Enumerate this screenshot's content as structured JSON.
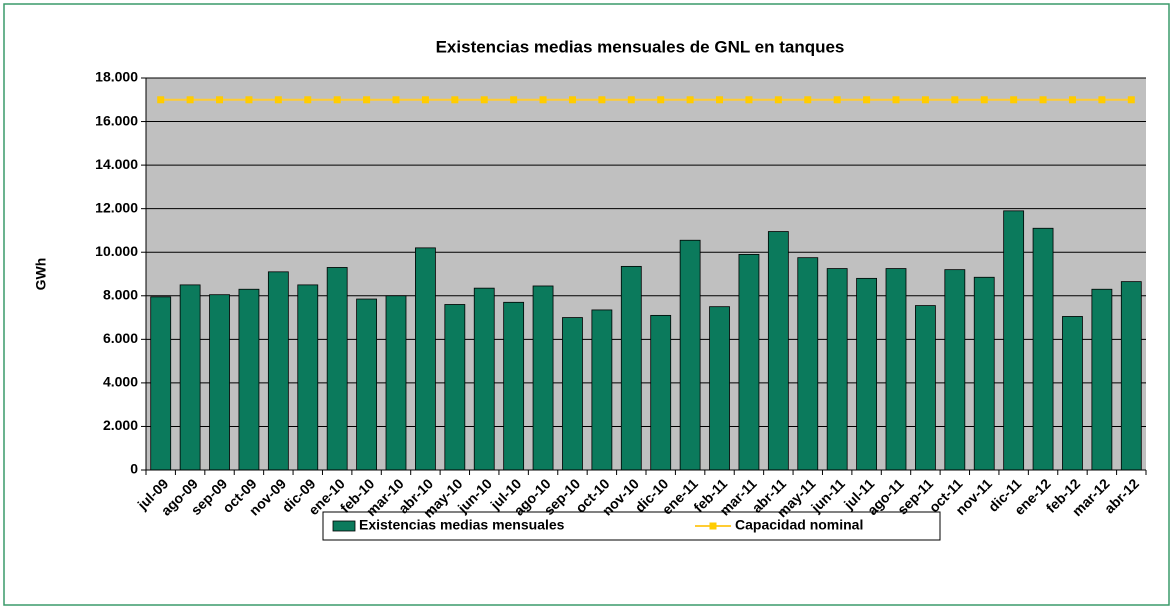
{
  "chart_data": {
    "type": "bar",
    "title": "Existencias medias mensuales de GNL en tanques",
    "y_label": "GWh",
    "categories": [
      "jul-09",
      "ago-09",
      "sep-09",
      "oct-09",
      "nov-09",
      "dic-09",
      "ene-10",
      "feb-10",
      "mar-10",
      "abr-10",
      "may-10",
      "jun-10",
      "jul-10",
      "ago-10",
      "sep-10",
      "oct-10",
      "nov-10",
      "dic-10",
      "ene-11",
      "feb-11",
      "mar-11",
      "abr-11",
      "may-11",
      "jun-11",
      "jul-11",
      "ago-11",
      "sep-11",
      "oct-11",
      "nov-11",
      "dic-11",
      "ene-12",
      "feb-12",
      "mar-12",
      "abr-12"
    ],
    "series": [
      {
        "name": "Existencias medias mensuales",
        "type": "bar",
        "color": "#0b7a5c",
        "values": [
          7950,
          8500,
          8050,
          8300,
          9100,
          8500,
          9300,
          7850,
          8000,
          10200,
          7600,
          8350,
          7700,
          8450,
          7000,
          7350,
          9350,
          7100,
          10550,
          7500,
          9900,
          10950,
          9750,
          9250,
          8800,
          9250,
          7550,
          9200,
          8850,
          11900,
          11100,
          7050,
          8300,
          8650
        ]
      },
      {
        "name": "Capacidad nominal",
        "type": "line",
        "color": "#ffcc33",
        "values": [
          17000,
          17000,
          17000,
          17000,
          17000,
          17000,
          17000,
          17000,
          17000,
          17000,
          17000,
          17000,
          17000,
          17000,
          17000,
          17000,
          17000,
          17000,
          17000,
          17000,
          17000,
          17000,
          17000,
          17000,
          17000,
          17000,
          17000,
          17000,
          17000,
          17000,
          17000,
          17000,
          17000,
          17000
        ]
      }
    ],
    "ylim": [
      0,
      18000
    ],
    "yticks": [
      0,
      {
        "value": 2000,
        "label": "2.000"
      },
      {
        "value": 4000,
        "label": "4.000"
      },
      {
        "value": 6000,
        "label": "6.000"
      },
      {
        "value": 8000,
        "label": "8.000"
      },
      {
        "value": 10000,
        "label": "10.000"
      },
      {
        "value": 12000,
        "label": "12.000"
      },
      {
        "value": 14000,
        "label": "14.000"
      },
      {
        "value": 16000,
        "label": "16.000"
      },
      {
        "value": 18000,
        "label": "18.000"
      }
    ],
    "grid": true,
    "legend": "bottom"
  }
}
